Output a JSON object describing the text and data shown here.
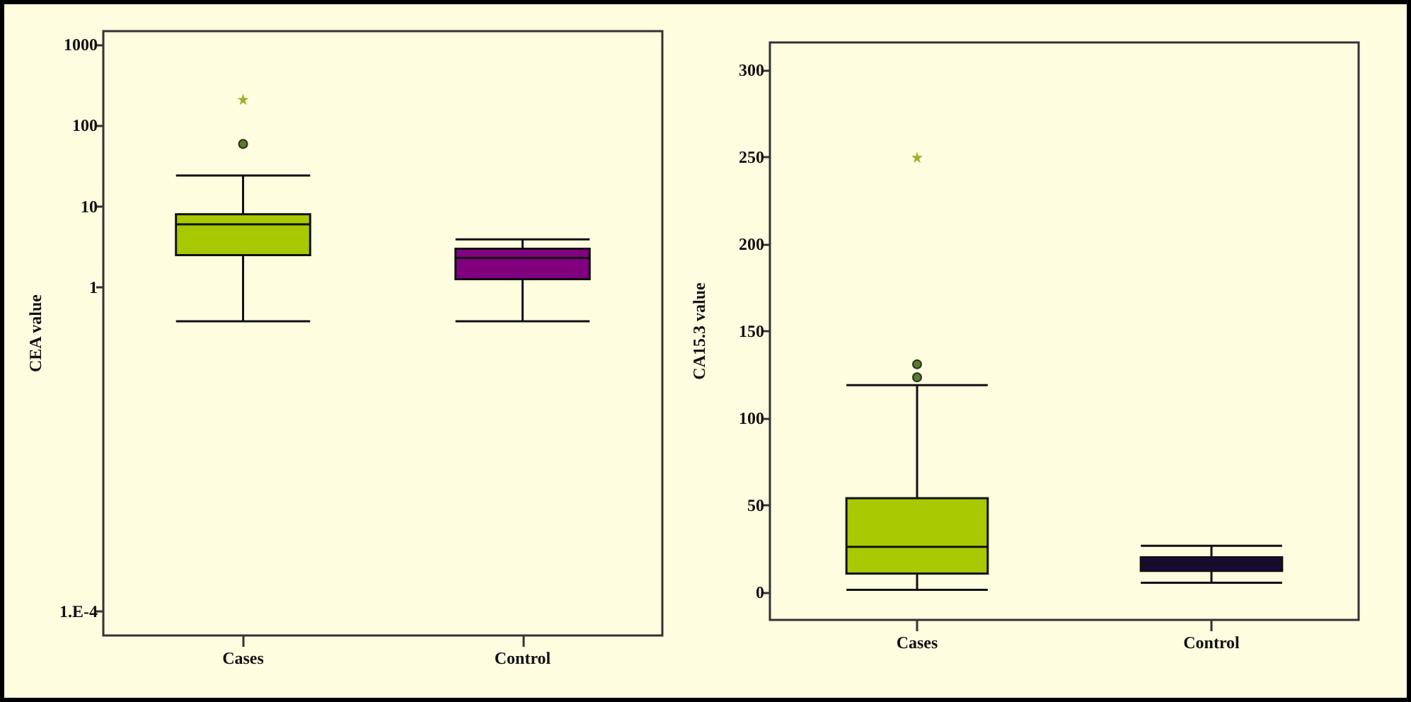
{
  "chart_data": [
    {
      "type": "box",
      "ylabel": "CEA value",
      "categories": [
        "Cases",
        "Control"
      ],
      "log": "y",
      "ylim": [
        5e-05,
        1460
      ],
      "yticks": [
        {
          "value": 0.0001,
          "label": "1.E-4"
        },
        1,
        10,
        100,
        1000
      ],
      "colors": [
        "#a8c800",
        "#800080"
      ],
      "boxes": [
        {
          "low": 0.38,
          "q1": 2.5,
          "median": 6,
          "q3": 8,
          "high": 24,
          "outliers": [
            59
          ]
        },
        {
          "low": 0.38,
          "q1": 1.26,
          "median": 2.3,
          "q3": 3,
          "high": 3.9
        }
      ],
      "series": [
        {
          "type": "scatter",
          "x": [
            "Cases"
          ],
          "values": [
            210
          ],
          "marker": "star",
          "color": "#8a9a00"
        }
      ]
    },
    {
      "type": "box",
      "ylabel": "CA15.3 value",
      "categories": [
        "Cases",
        "Control"
      ],
      "ylim": [
        -16,
        316
      ],
      "yticks": [
        0,
        50,
        100,
        150,
        200,
        250,
        300
      ],
      "colors": [
        "#a8c800",
        "#1a0a3a"
      ],
      "boxes": [
        {
          "low": 1.3,
          "q1": 10.6,
          "median": 26,
          "q3": 54,
          "high": 119,
          "outliers": [
            123.5,
            131
          ]
        },
        {
          "low": 5.4,
          "q1": 12.2,
          "median": 16.3,
          "q3": 20,
          "high": 26.6
        }
      ],
      "series": [
        {
          "type": "scatter",
          "x": [
            "Cases"
          ],
          "values": [
            250
          ],
          "marker": "star",
          "color": "#8a9a00"
        }
      ]
    }
  ]
}
